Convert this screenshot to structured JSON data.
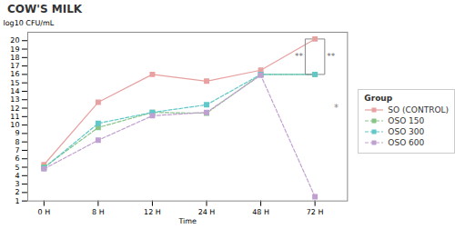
{
  "chart_data": {
    "type": "line",
    "title": "COW'S MILK",
    "xlabel": "Time",
    "ylabel": "log10 CFU/mL",
    "categories": [
      "0 H",
      "8 H",
      "12 H",
      "24 H",
      "48 H",
      "72 H"
    ],
    "series": [
      {
        "name": "SO (CONTROL)",
        "color": "#e8a0a0",
        "marker": "square",
        "line_style": "solid",
        "values": [
          5.3,
          12.7,
          16.0,
          15.2,
          16.5,
          20.2
        ]
      },
      {
        "name": "OSO 150",
        "color": "#88c488",
        "marker": "square",
        "line_style": "dashed",
        "values": [
          5.0,
          9.7,
          11.5,
          11.4,
          16.0,
          16.0
        ]
      },
      {
        "name": "OSO 300",
        "color": "#60c8c8",
        "marker": "square",
        "line_style": "dashed",
        "values": [
          4.9,
          10.2,
          11.5,
          12.4,
          16.0,
          16.0
        ]
      },
      {
        "name": "OSO 600",
        "color": "#c0a0d0",
        "marker": "square",
        "line_style": "dashed",
        "values": [
          4.8,
          8.2,
          11.1,
          11.5,
          15.9,
          1.5
        ]
      }
    ],
    "ylim": [
      1,
      21
    ],
    "yticks": [
      1,
      2,
      3,
      4,
      5,
      6,
      7,
      8,
      9,
      10,
      11,
      12,
      13,
      14,
      15,
      16,
      17,
      18,
      19,
      20
    ],
    "grid": false,
    "legend": "right",
    "legend_title": "Group",
    "annotations": [
      {
        "text": "**",
        "x": "72 H",
        "y": [
          16.0,
          20.2
        ],
        "side": "left"
      },
      {
        "text": "**",
        "x": "72 H",
        "y": [
          16.0,
          20.2
        ],
        "side": "right"
      },
      {
        "text": "*",
        "x": "72 H",
        "y": 12.0,
        "side": "right"
      }
    ]
  }
}
